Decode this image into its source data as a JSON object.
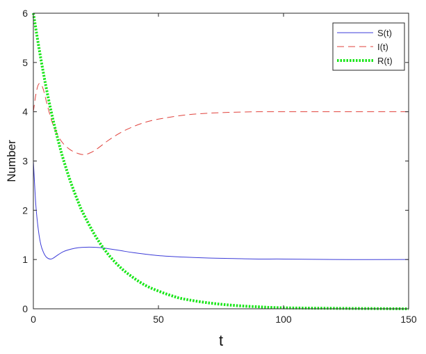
{
  "chart_data": {
    "type": "line",
    "title": "",
    "xlabel": "t",
    "ylabel": "Number",
    "xlim": [
      0,
      150
    ],
    "ylim": [
      0,
      6
    ],
    "xticks": [
      0,
      50,
      100,
      150
    ],
    "yticks": [
      0,
      1,
      2,
      3,
      4,
      5,
      6
    ],
    "grid": false,
    "legend_position": "top-right",
    "series": [
      {
        "name": "S(t)",
        "color": "#3b3bd8",
        "style": "solid",
        "x": [
          0,
          1,
          2,
          3,
          4,
          5,
          6,
          7,
          8,
          10,
          12,
          15,
          18,
          21,
          24,
          27,
          30,
          35,
          40,
          50,
          60,
          70,
          80,
          90,
          100,
          120,
          150
        ],
        "y": [
          3.0,
          2.1,
          1.6,
          1.3,
          1.15,
          1.06,
          1.02,
          1.01,
          1.03,
          1.1,
          1.16,
          1.21,
          1.24,
          1.25,
          1.25,
          1.24,
          1.22,
          1.18,
          1.14,
          1.08,
          1.05,
          1.03,
          1.02,
          1.01,
          1.01,
          1.0,
          1.0
        ]
      },
      {
        "name": "I(t)",
        "color": "#e0413b",
        "style": "dashed",
        "x": [
          0,
          1,
          2,
          3,
          4,
          5,
          6,
          7,
          8,
          10,
          12,
          15,
          18,
          20,
          22,
          25,
          30,
          35,
          40,
          45,
          50,
          60,
          70,
          80,
          90,
          100,
          120,
          150
        ],
        "y": [
          4.0,
          4.35,
          4.55,
          4.56,
          4.45,
          4.25,
          4.05,
          3.87,
          3.72,
          3.5,
          3.35,
          3.22,
          3.15,
          3.13,
          3.15,
          3.23,
          3.42,
          3.58,
          3.7,
          3.79,
          3.85,
          3.93,
          3.97,
          3.99,
          4.0,
          4.0,
          4.0,
          4.0
        ]
      },
      {
        "name": "R(t)",
        "color": "#19e619",
        "style": "dotted",
        "x": [
          0,
          2,
          4,
          6,
          8,
          10,
          12,
          15,
          18,
          20,
          25,
          30,
          35,
          40,
          45,
          50,
          55,
          60,
          70,
          80,
          90,
          100,
          120,
          150
        ],
        "y": [
          6.0,
          5.37,
          4.79,
          4.27,
          3.81,
          3.4,
          3.03,
          2.56,
          2.16,
          1.93,
          1.46,
          1.1,
          0.83,
          0.63,
          0.47,
          0.36,
          0.27,
          0.2,
          0.12,
          0.07,
          0.04,
          0.02,
          0.01,
          0.0
        ]
      }
    ]
  }
}
